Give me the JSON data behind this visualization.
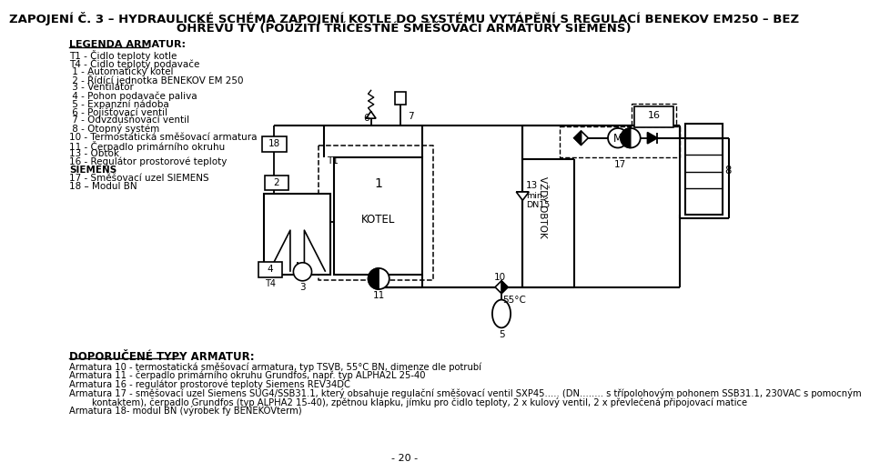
{
  "title_line1": "ZAPOJENÍ Č. 3 – HYDRAULICKÉ SCHÉMA ZAPOJENÍ KOTLE DO SYSTÉMU VYTÁPĚNÍ S REGULACÍ BENEKOV EM250 – BEZ",
  "title_line2": "OHŘEVU TV (POUŽITÍ TŘÍCESTNÉ SMĚŠOVACÍ ARMATURY SIEMENS)",
  "legend_title": "LEGENDA ARMATUR:",
  "legend_items": [
    "T1 - Čidlo teploty kotle",
    "T4 - Čidlo teploty podavače",
    " 1 - Automatický kotel",
    " 2 - Řídící jednotka BENEKOV EM 250",
    " 3 - Ventilátor",
    " 4 - Pohon podavače paliva",
    " 5 - Expanzní nádoba",
    " 6 - Pojišťovací ventil",
    " 7 - Odvzdušňovací ventil",
    " 8 - Otopný systém",
    "10 - Termostatická směšovací armatura",
    "11 - Čerpadlo primárního okruhu",
    "13 - Obtok",
    "16 - Regulátor prostorové teploty",
    "SIEMENS",
    "17 - Směšovací uzel SIEMENS",
    "18 – Modul BN"
  ],
  "bottom_title": "DOPORUČENÉ TYPY ARMATUR:",
  "bottom_items": [
    "Armatura 10 - termostatická směšovací armatura, typ TSVB, 55°C BN, dimenze dle potrubí",
    "Armatura 11 - čerpadlo primárního okruhu Grundfos, např. typ ALPHA2L 25-40",
    "Armatura 16 - regulátor prostorové teploty Siemens REV34DC",
    "Armatura 17 - směšovací uzel Siemens SUG4/SSB31.1, který obsahuje regulační směšovací ventil SXP45..... (DN........ s třípolohovým pohonem SSB31.1, 230VAC s pomocným",
    "        kontaktem), čerpadlo Grundfos (typ ALPHA2 15-40), zpětnou klapku, jímku pro čidlo teploty, 2 x kulový ventil, 2 x převlečená připojovací matice",
    "Armatura 18- modul BN (výrobek fy BENEKOVterm)"
  ],
  "page_number": "- 20 -"
}
